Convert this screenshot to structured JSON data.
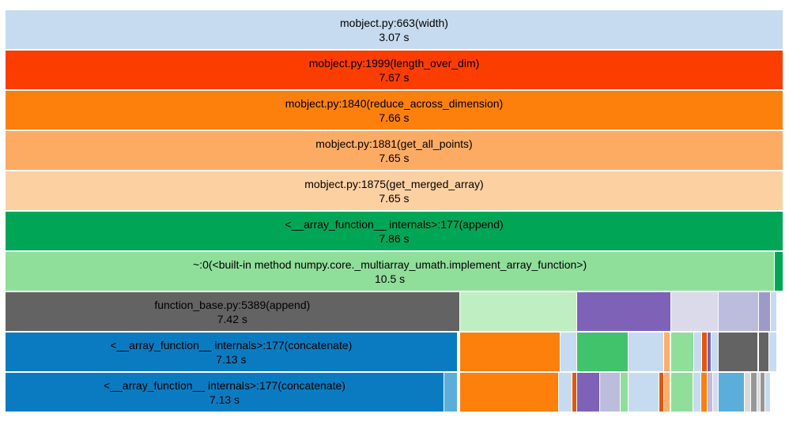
{
  "colors": {
    "light_blue": "#c6dbef",
    "red_orange": "#fb3d00",
    "orange": "#fd7f0c",
    "light_orange": "#fdab63",
    "peach": "#fdd0a2",
    "green": "#00a656",
    "light_green": "#8fdf9b",
    "dark_gray": "#636363",
    "blue": "#0a7bc1",
    "pale_green": "#bfeec3",
    "purple": "#7d62b7",
    "lavender": "#dadaeb",
    "light_purple": "#bcbddc",
    "mid_purple": "#9e9ac8",
    "green2": "#41c36b",
    "sky": "#6baed6",
    "orange_light": "#fdae6b",
    "gray": "#969696",
    "pale_gray": "#d9d9d9",
    "red": "#e6550d",
    "teal_blue": "#5aaed9"
  },
  "frames": [
    {
      "id": "width",
      "name": "mobject.py:663(width)",
      "time": "3.07 s",
      "color": "light_blue",
      "depth": 0,
      "start": 0.0,
      "end": 1.0
    },
    {
      "id": "length-over-dim",
      "name": "mobject.py:1999(length_over_dim)",
      "time": "7.67 s",
      "color": "red_orange",
      "depth": 1,
      "start": 0.0,
      "end": 1.0
    },
    {
      "id": "reduce-across-dimension",
      "name": "mobject.py:1840(reduce_across_dimension)",
      "time": "7.66 s",
      "color": "orange",
      "depth": 2,
      "start": 0.0,
      "end": 1.0
    },
    {
      "id": "get-all-points",
      "name": "mobject.py:1881(get_all_points)",
      "time": "7.65 s",
      "color": "light_orange",
      "depth": 3,
      "start": 0.0,
      "end": 1.0
    },
    {
      "id": "get-merged-array",
      "name": "mobject.py:1875(get_merged_array)",
      "time": "7.65 s",
      "color": "peach",
      "depth": 4,
      "start": 0.0,
      "end": 1.0
    },
    {
      "id": "array-function-append",
      "name": "<__array_function__ internals>:177(append)",
      "time": "7.86 s",
      "color": "green",
      "depth": 5,
      "start": 0.0,
      "end": 1.0
    },
    {
      "id": "implement-array-function",
      "name": "~:0(<built-in method numpy.core._multiarray_umath.implement_array_function>)",
      "time": "10.5 s",
      "color": "light_green",
      "depth": 6,
      "start": 0.0,
      "end": 0.989
    },
    {
      "id": "implement-tail",
      "name": "",
      "time": "",
      "color": "green",
      "depth": 6,
      "start": 0.989,
      "end": 1.0
    },
    {
      "id": "function-base-append",
      "name": "function_base.py:5389(append)",
      "time": "7.42 s",
      "color": "dark_gray",
      "depth": 7,
      "start": 0.0,
      "end": 0.584
    },
    {
      "id": "d7-a",
      "name": "",
      "time": "",
      "color": "pale_green",
      "depth": 7,
      "start": 0.584,
      "end": 0.735
    },
    {
      "id": "d7-b",
      "name": "",
      "time": "",
      "color": "purple",
      "depth": 7,
      "start": 0.735,
      "end": 0.856
    },
    {
      "id": "d7-c",
      "name": "",
      "time": "",
      "color": "lavender",
      "depth": 7,
      "start": 0.856,
      "end": 0.917
    },
    {
      "id": "d7-d",
      "name": "",
      "time": "",
      "color": "light_purple",
      "depth": 7,
      "start": 0.917,
      "end": 0.969
    },
    {
      "id": "d7-e",
      "name": "",
      "time": "",
      "color": "mid_purple",
      "depth": 7,
      "start": 0.969,
      "end": 0.984
    },
    {
      "id": "d7-f",
      "name": "",
      "time": "",
      "color": "light_blue",
      "depth": 7,
      "start": 0.984,
      "end": 0.992
    },
    {
      "id": "concatenate-1",
      "name": "<__array_function__ internals>:177(concatenate)",
      "time": "7.13 s",
      "color": "blue",
      "depth": 8,
      "start": 0.0,
      "end": 0.581
    },
    {
      "id": "d8-a",
      "name": "",
      "time": "",
      "color": "orange",
      "depth": 8,
      "start": 0.584,
      "end": 0.713
    },
    {
      "id": "d8-b",
      "name": "",
      "time": "",
      "color": "light_blue",
      "depth": 8,
      "start": 0.713,
      "end": 0.735
    },
    {
      "id": "d8-c",
      "name": "",
      "time": "",
      "color": "green2",
      "depth": 8,
      "start": 0.735,
      "end": 0.801
    },
    {
      "id": "d8-d",
      "name": "",
      "time": "",
      "color": "light_blue",
      "depth": 8,
      "start": 0.801,
      "end": 0.847
    },
    {
      "id": "d8-e",
      "name": "",
      "time": "",
      "color": "orange_light",
      "depth": 8,
      "start": 0.847,
      "end": 0.855
    },
    {
      "id": "d8-f",
      "name": "",
      "time": "",
      "color": "light_green",
      "depth": 8,
      "start": 0.856,
      "end": 0.885
    },
    {
      "id": "d8-g",
      "name": "",
      "time": "",
      "color": "light_blue",
      "depth": 8,
      "start": 0.885,
      "end": 0.895
    },
    {
      "id": "d8-h",
      "name": "",
      "time": "",
      "color": "red",
      "depth": 8,
      "start": 0.895,
      "end": 0.902
    },
    {
      "id": "d8-i",
      "name": "",
      "time": "",
      "color": "purple",
      "depth": 8,
      "start": 0.902,
      "end": 0.908
    },
    {
      "id": "d8-j",
      "name": "",
      "time": "",
      "color": "light_blue",
      "depth": 8,
      "start": 0.908,
      "end": 0.917
    },
    {
      "id": "d8-k",
      "name": "",
      "time": "",
      "color": "dark_gray",
      "depth": 8,
      "start": 0.917,
      "end": 0.968
    },
    {
      "id": "d8-l",
      "name": "",
      "time": "",
      "color": "dark_gray",
      "depth": 8,
      "start": 0.968,
      "end": 0.982
    },
    {
      "id": "d8-m",
      "name": "",
      "time": "",
      "color": "light_blue",
      "depth": 8,
      "start": 0.982,
      "end": 0.992
    },
    {
      "id": "concatenate-2",
      "name": "<__array_function__ internals>:177(concatenate)",
      "time": "7.13 s",
      "color": "blue",
      "depth": 9,
      "start": 0.0,
      "end": 0.564
    },
    {
      "id": "d9-a",
      "name": "",
      "time": "",
      "color": "teal_blue",
      "depth": 9,
      "start": 0.564,
      "end": 0.581
    },
    {
      "id": "d9-b",
      "name": "",
      "time": "",
      "color": "orange",
      "depth": 9,
      "start": 0.584,
      "end": 0.711
    },
    {
      "id": "d9-c",
      "name": "",
      "time": "",
      "color": "light_blue",
      "depth": 9,
      "start": 0.711,
      "end": 0.729
    },
    {
      "id": "d9-d",
      "name": "",
      "time": "",
      "color": "red",
      "depth": 9,
      "start": 0.729,
      "end": 0.735
    },
    {
      "id": "d9-e",
      "name": "",
      "time": "",
      "color": "purple",
      "depth": 9,
      "start": 0.735,
      "end": 0.764
    },
    {
      "id": "d9-f",
      "name": "",
      "time": "",
      "color": "light_purple",
      "depth": 9,
      "start": 0.764,
      "end": 0.791
    },
    {
      "id": "d9-g",
      "name": "",
      "time": "",
      "color": "light_green",
      "depth": 9,
      "start": 0.791,
      "end": 0.801
    },
    {
      "id": "d9-h",
      "name": "",
      "time": "",
      "color": "light_blue",
      "depth": 9,
      "start": 0.801,
      "end": 0.84
    },
    {
      "id": "d9-i",
      "name": "",
      "time": "",
      "color": "red",
      "depth": 9,
      "start": 0.84,
      "end": 0.847
    },
    {
      "id": "d9-j",
      "name": "",
      "time": "",
      "color": "orange_light",
      "depth": 9,
      "start": 0.847,
      "end": 0.855
    },
    {
      "id": "d9-k",
      "name": "",
      "time": "",
      "color": "light_green",
      "depth": 9,
      "start": 0.856,
      "end": 0.884
    },
    {
      "id": "d9-l",
      "name": "",
      "time": "",
      "color": "light_blue",
      "depth": 9,
      "start": 0.884,
      "end": 0.894
    },
    {
      "id": "d9-m",
      "name": "",
      "time": "",
      "color": "orange",
      "depth": 9,
      "start": 0.894,
      "end": 0.902
    },
    {
      "id": "d9-n",
      "name": "",
      "time": "",
      "color": "light_purple",
      "depth": 9,
      "start": 0.902,
      "end": 0.91
    },
    {
      "id": "d9-o",
      "name": "",
      "time": "",
      "color": "lavender",
      "depth": 9,
      "start": 0.91,
      "end": 0.917
    },
    {
      "id": "d9-p",
      "name": "",
      "time": "",
      "color": "teal_blue",
      "depth": 9,
      "start": 0.917,
      "end": 0.95
    },
    {
      "id": "d9-q",
      "name": "",
      "time": "",
      "color": "pale_gray",
      "depth": 9,
      "start": 0.95,
      "end": 0.958
    },
    {
      "id": "d9-r",
      "name": "",
      "time": "",
      "color": "gray",
      "depth": 9,
      "start": 0.958,
      "end": 0.966
    },
    {
      "id": "d9-s",
      "name": "",
      "time": "",
      "color": "pale_gray",
      "depth": 9,
      "start": 0.966,
      "end": 0.971
    },
    {
      "id": "d9-t",
      "name": "",
      "time": "",
      "color": "gray",
      "depth": 9,
      "start": 0.971,
      "end": 0.977
    },
    {
      "id": "d9-u",
      "name": "",
      "time": "",
      "color": "light_blue",
      "depth": 9,
      "start": 0.977,
      "end": 0.984
    }
  ]
}
